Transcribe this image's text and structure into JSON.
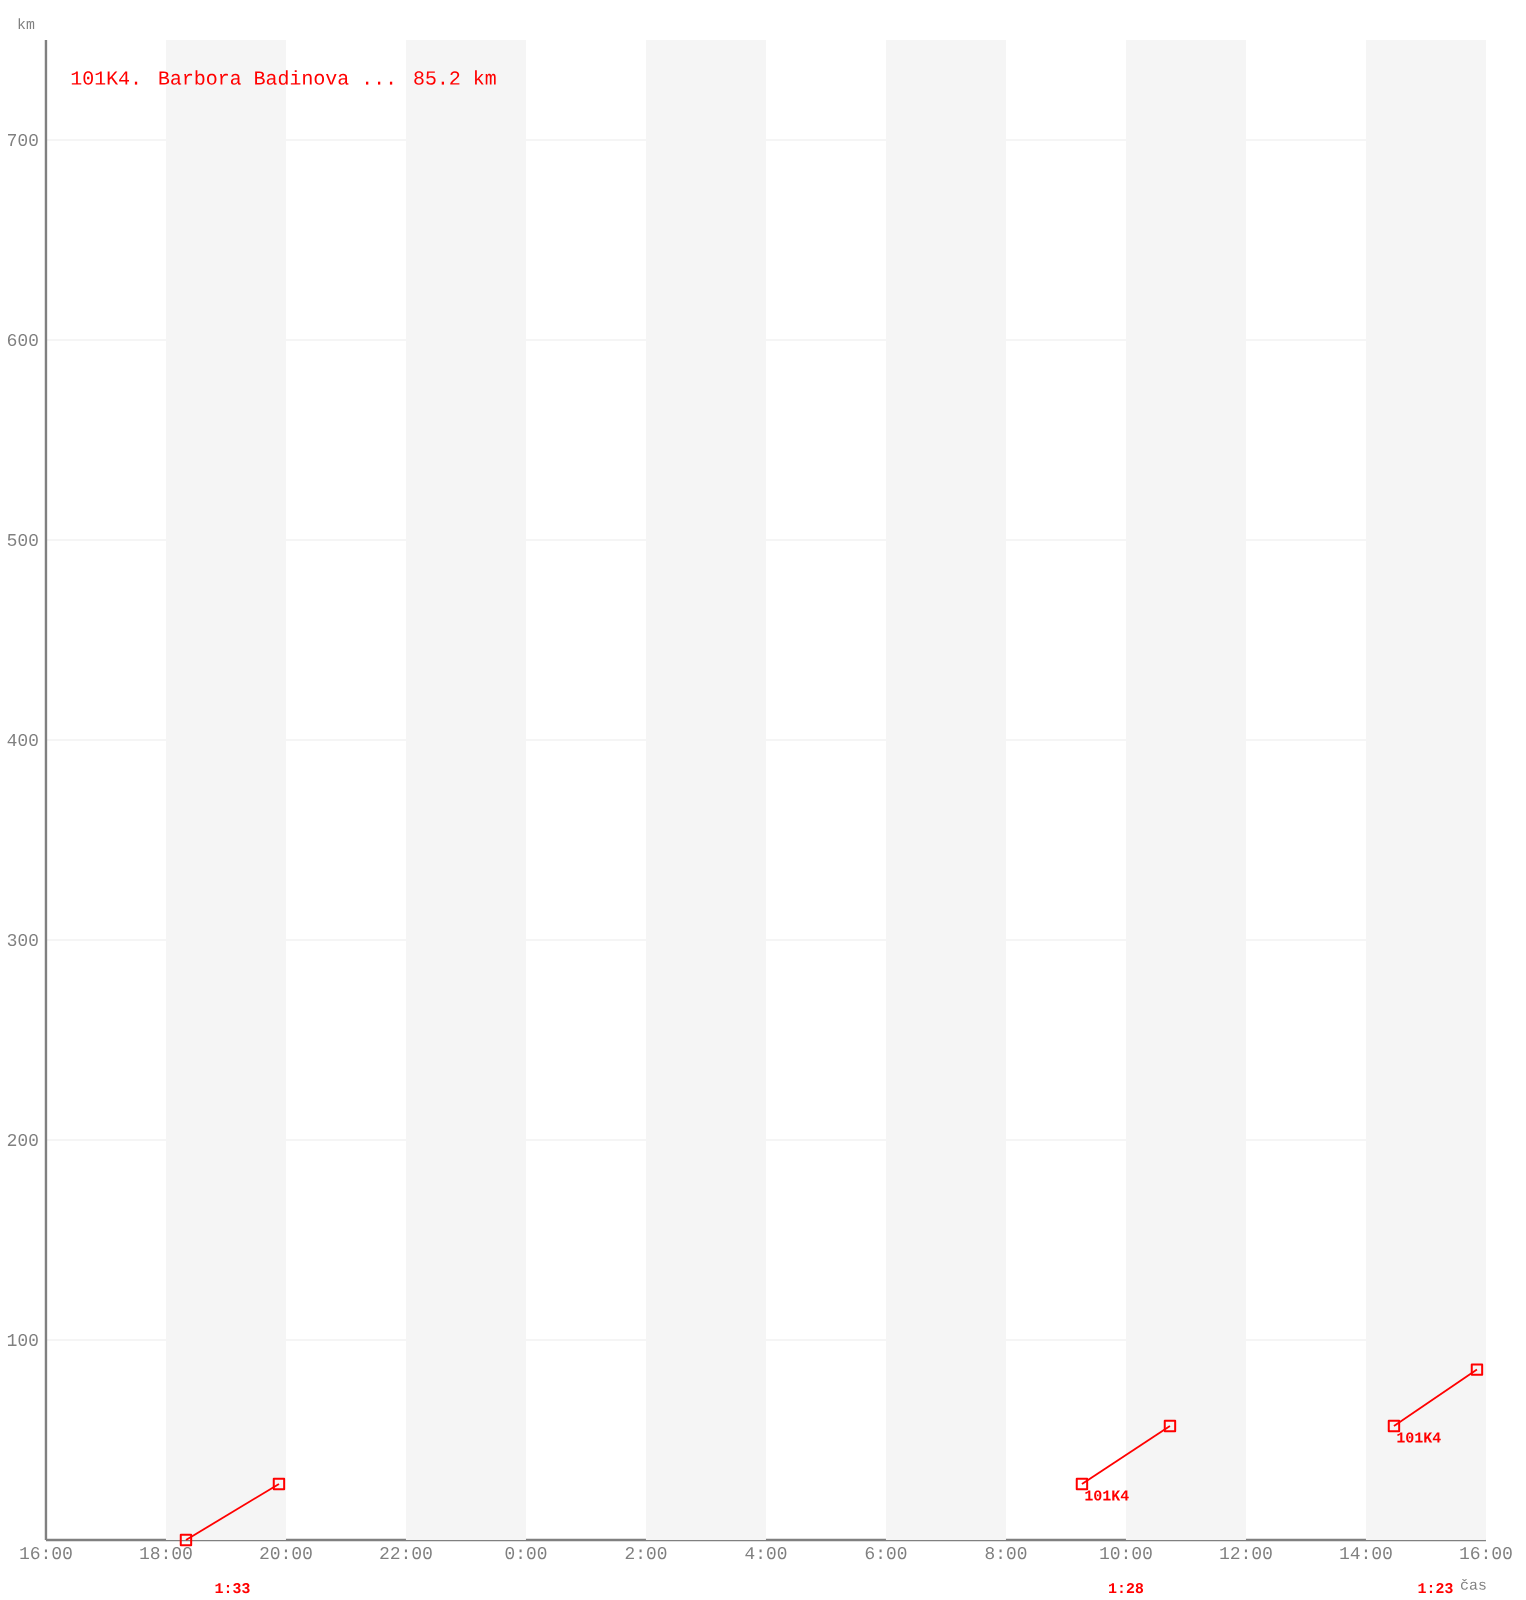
{
  "chart_data": {
    "type": "line",
    "title": "101K4. Barbora Badinova ... 85.2 km",
    "xlabel": "čas",
    "ylabel": "km",
    "xlim": [
      "2000-01-01T16:00",
      "2000-01-02T16:00"
    ],
    "ylim": [
      0,
      750
    ],
    "xticks": [
      {
        "value": "2000-01-01T16:00",
        "label": "16:00"
      },
      {
        "value": "2000-01-01T18:00",
        "label": "18:00"
      },
      {
        "value": "2000-01-01T20:00",
        "label": "20:00"
      },
      {
        "value": "2000-01-01T22:00",
        "label": "22:00"
      },
      {
        "value": "2000-01-02T00:00",
        "label": "0:00"
      },
      {
        "value": "2000-01-02T02:00",
        "label": "2:00"
      },
      {
        "value": "2000-01-02T04:00",
        "label": "4:00"
      },
      {
        "value": "2000-01-02T06:00",
        "label": "6:00"
      },
      {
        "value": "2000-01-02T08:00",
        "label": "8:00"
      },
      {
        "value": "2000-01-02T10:00",
        "label": "10:00"
      },
      {
        "value": "2000-01-02T12:00",
        "label": "12:00"
      },
      {
        "value": "2000-01-02T14:00",
        "label": "14:00"
      },
      {
        "value": "2000-01-02T16:00",
        "label": "16:00"
      }
    ],
    "yticks": [
      100,
      200,
      300,
      400,
      500,
      600,
      700
    ],
    "grid": "y",
    "marker": "square",
    "line_style": "solid",
    "series": [
      {
        "color": "#ff0000",
        "x": [
          "2000-01-01T18:20",
          "2000-01-01T19:53"
        ],
        "values": [
          0,
          28
        ]
      },
      {
        "color": "#ff0000",
        "x": [
          "2000-01-02T09:16",
          "2000-01-02T10:44"
        ],
        "values": [
          28,
          57
        ]
      },
      {
        "color": "#ff0000",
        "x": [
          "2000-01-02T14:28",
          "2000-01-02T15:51"
        ],
        "values": [
          57,
          85.2
        ]
      }
    ],
    "bands": [
      {
        "axis": "x",
        "from": "2000-01-01T18:00",
        "to": "2000-01-01T20:00",
        "color": "#f5f5f5"
      },
      {
        "axis": "x",
        "from": "2000-01-01T22:00",
        "to": "2000-01-02T00:00",
        "color": "#f5f5f5"
      },
      {
        "axis": "x",
        "from": "2000-01-02T02:00",
        "to": "2000-01-02T04:00",
        "color": "#f5f5f5"
      },
      {
        "axis": "x",
        "from": "2000-01-02T06:00",
        "to": "2000-01-02T08:00",
        "color": "#f5f5f5"
      },
      {
        "axis": "x",
        "from": "2000-01-02T10:00",
        "to": "2000-01-02T12:00",
        "color": "#f5f5f5"
      },
      {
        "axis": "x",
        "from": "2000-01-02T14:00",
        "to": "2000-01-02T16:00",
        "color": "#f5f5f5"
      }
    ],
    "annotations": [
      "1:33",
      "1:28",
      "1:23",
      {
        "text": "101K4",
        "x": "2000-01-02T09:16",
        "y": 28
      },
      {
        "text": "101K4",
        "x": "2000-01-02T14:28",
        "y": 57
      }
    ]
  }
}
